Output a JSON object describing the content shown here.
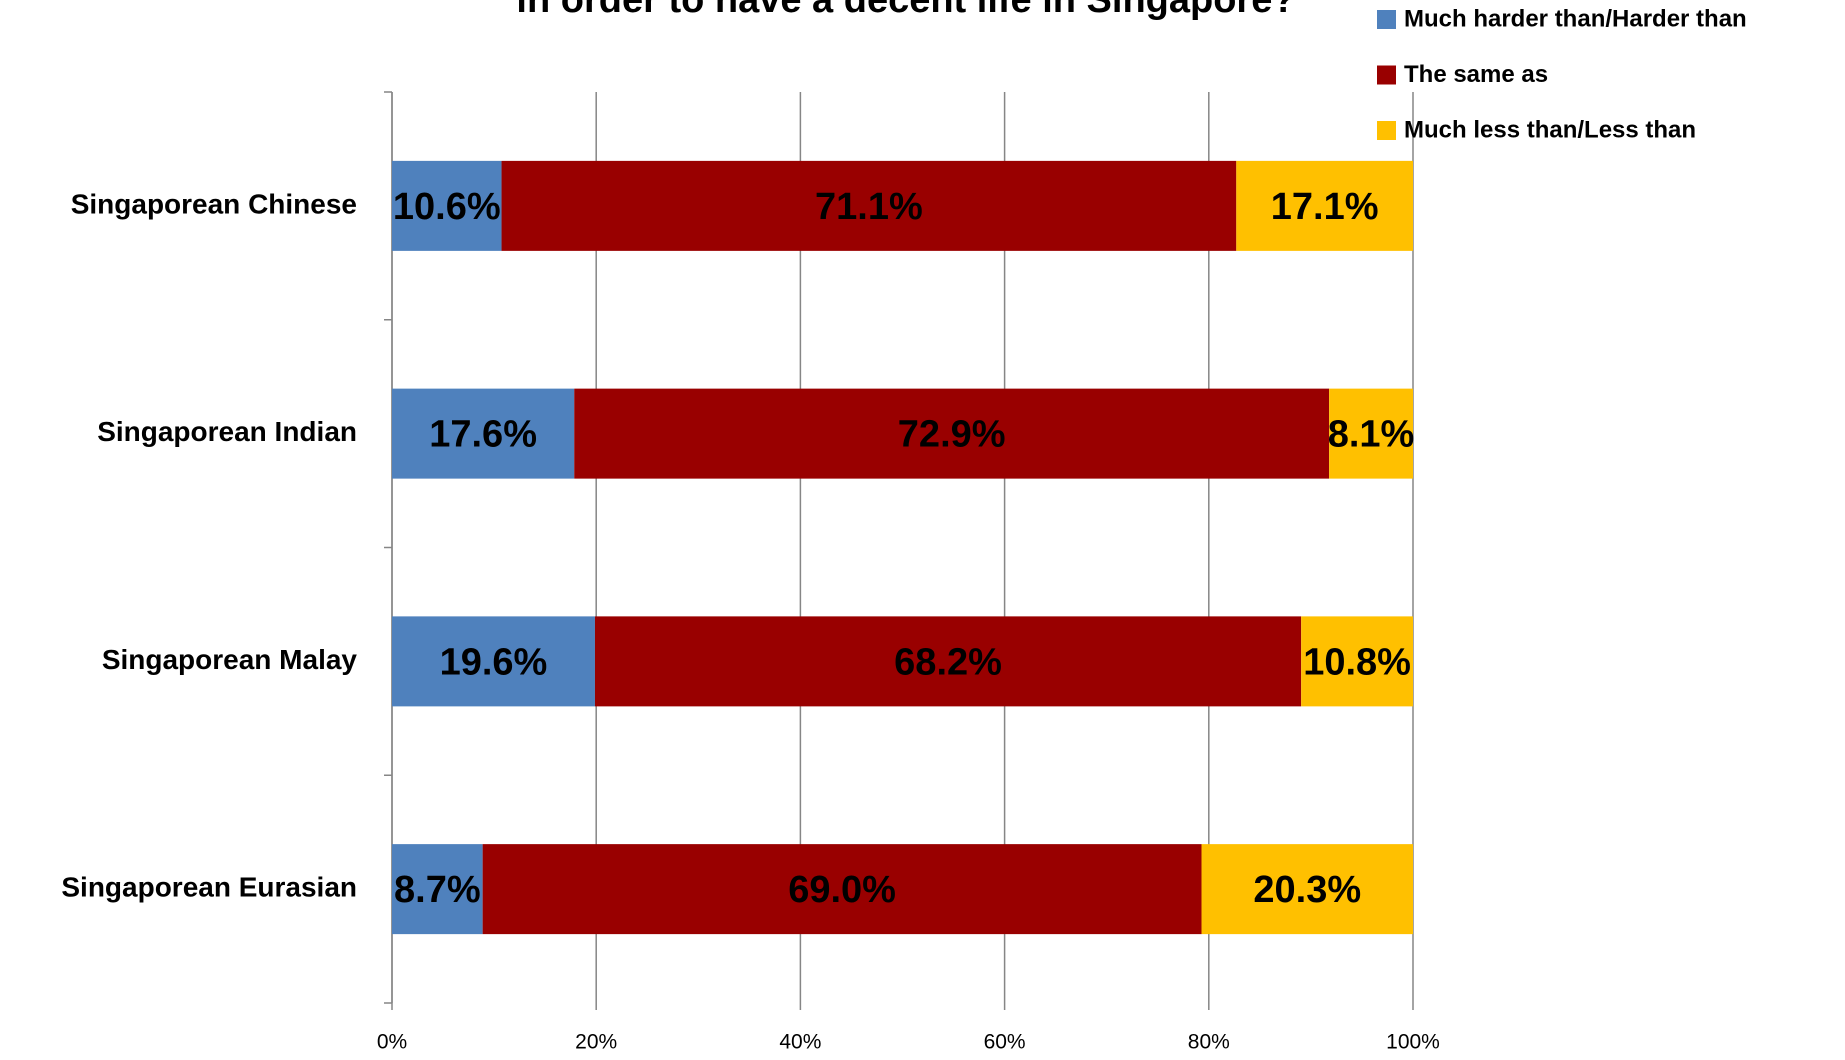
{
  "chart_data": {
    "type": "bar",
    "orientation": "horizontal",
    "stacking": "percent",
    "title": "in order to have a decent life in Singapore?",
    "categories": [
      "Singaporean Chinese",
      "Singaporean Indian",
      "Singaporean Malay",
      "Singaporean Eurasian"
    ],
    "series": [
      {
        "name": "Much harder than/Harder than",
        "color": "#4f81bd",
        "values": [
          10.6,
          17.6,
          19.6,
          8.7
        ],
        "value_labels": [
          "10.6%",
          "17.6%",
          "19.6%",
          "8.7%"
        ]
      },
      {
        "name": "The same as",
        "color": "#990000",
        "values": [
          71.1,
          72.9,
          68.2,
          69.0
        ],
        "value_labels": [
          "71.1%",
          "72.9%",
          "68.2%",
          "69.0%"
        ]
      },
      {
        "name": "Much less than/Less than",
        "color": "#ffc000",
        "values": [
          17.1,
          8.1,
          10.8,
          20.3
        ],
        "value_labels": [
          "17.1%",
          "8.1%",
          "10.8%",
          "20.3%"
        ]
      }
    ],
    "xlim": [
      0,
      100
    ],
    "xticks": [
      {
        "value": 0,
        "label": "0%"
      },
      {
        "value": 20,
        "label": "20%"
      },
      {
        "value": 40,
        "label": "40%"
      },
      {
        "value": 60,
        "label": "60%"
      },
      {
        "value": 80,
        "label": "80%"
      },
      {
        "value": 100,
        "label": "100%"
      }
    ],
    "grid": true,
    "legend": "top-right"
  }
}
